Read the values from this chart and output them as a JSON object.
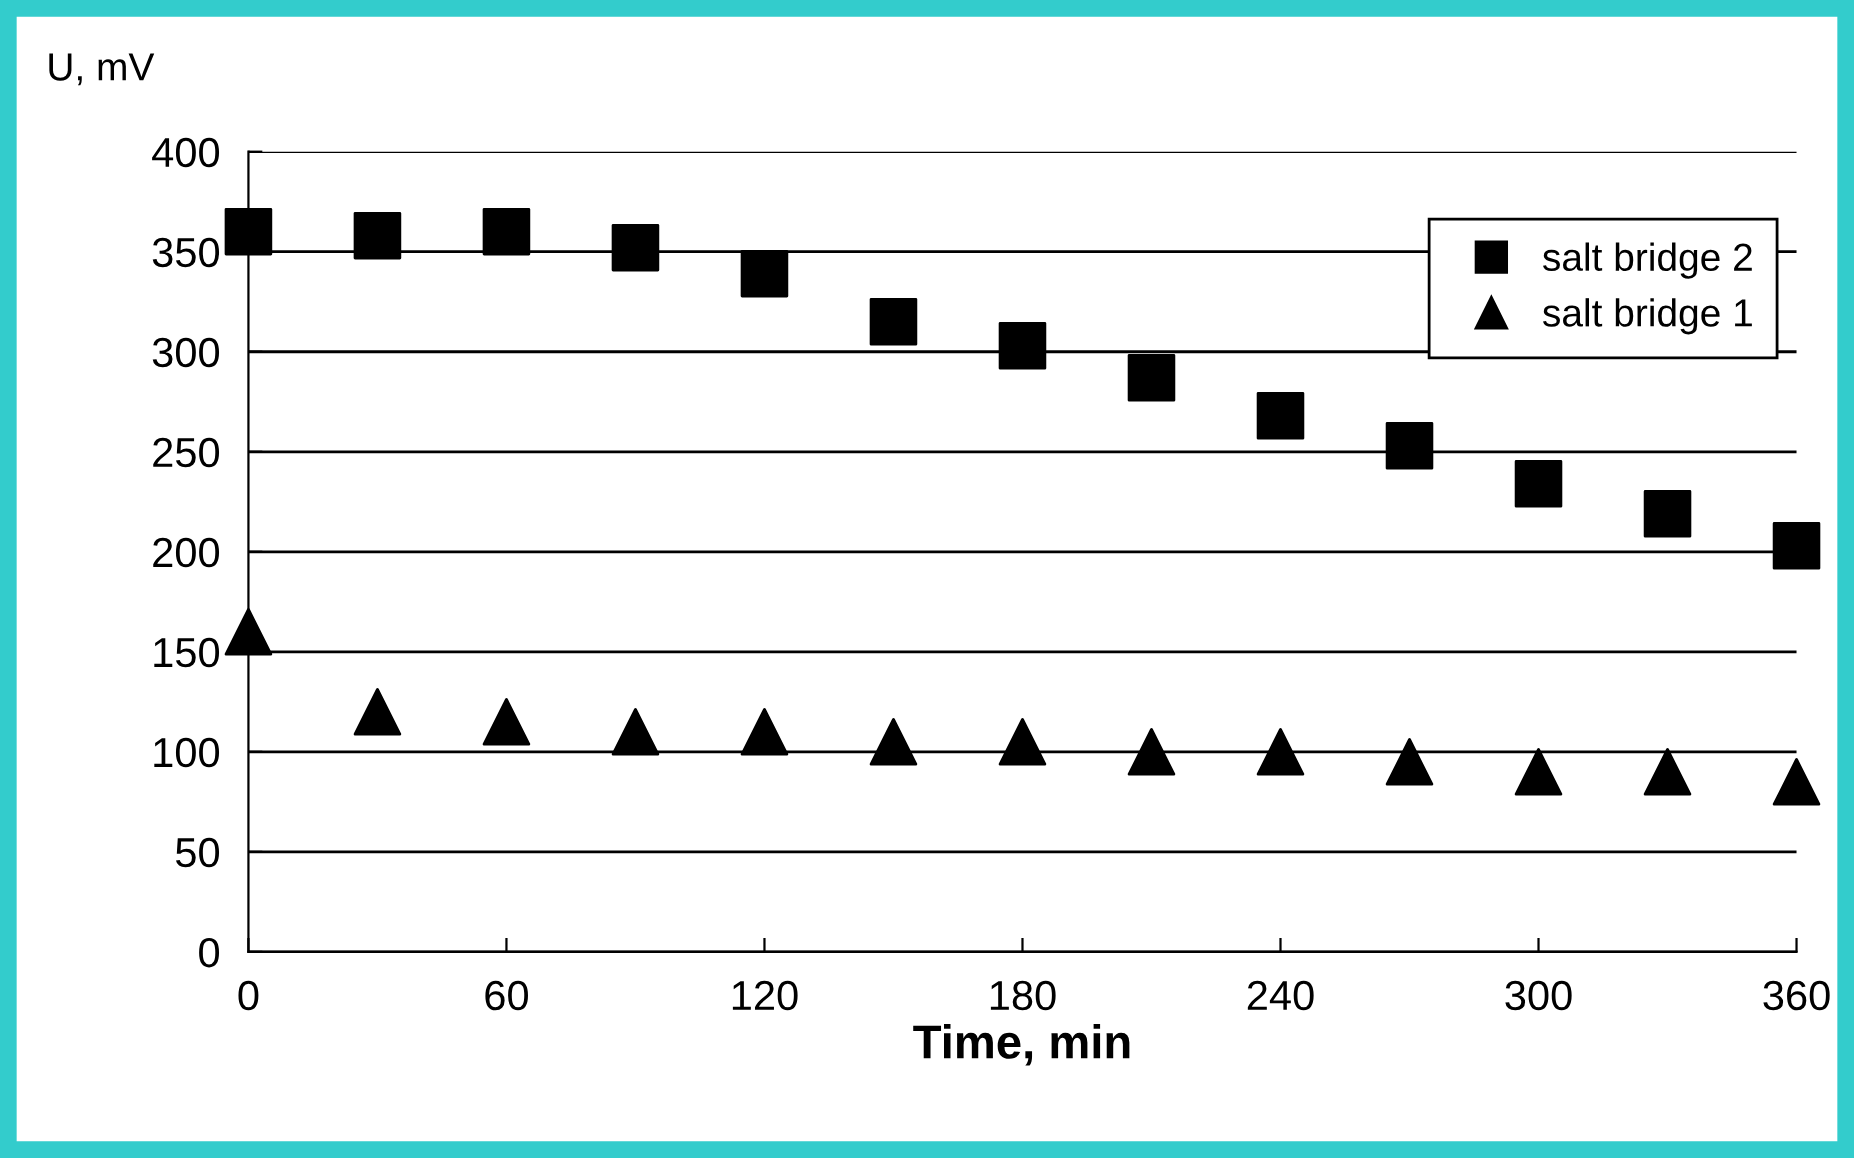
{
  "chart_data": {
    "type": "scatter",
    "xlabel": "Time, min",
    "ylabel": "U, mV",
    "x": [
      0,
      30,
      60,
      90,
      120,
      150,
      180,
      210,
      240,
      270,
      300,
      330,
      360
    ],
    "series": [
      {
        "name": "salt bridge 2",
        "color": "#000000",
        "marker": "square",
        "values": [
          360,
          358,
          360,
          352,
          339,
          315,
          303,
          287,
          268,
          253,
          234,
          219,
          203
        ]
      },
      {
        "name": "salt bridge 1",
        "color": "#000000",
        "marker": "triangle",
        "values": [
          160,
          120,
          115,
          110,
          110,
          105,
          105,
          100,
          100,
          95,
          90,
          90,
          85
        ]
      }
    ],
    "xlim": [
      0,
      360
    ],
    "xticks": [
      0,
      60,
      120,
      180,
      240,
      300,
      360
    ],
    "ylim": [
      0,
      400
    ],
    "yticks": [
      0,
      50,
      100,
      150,
      200,
      250,
      300,
      350,
      400
    ],
    "grid": "y",
    "legend": "top right"
  }
}
